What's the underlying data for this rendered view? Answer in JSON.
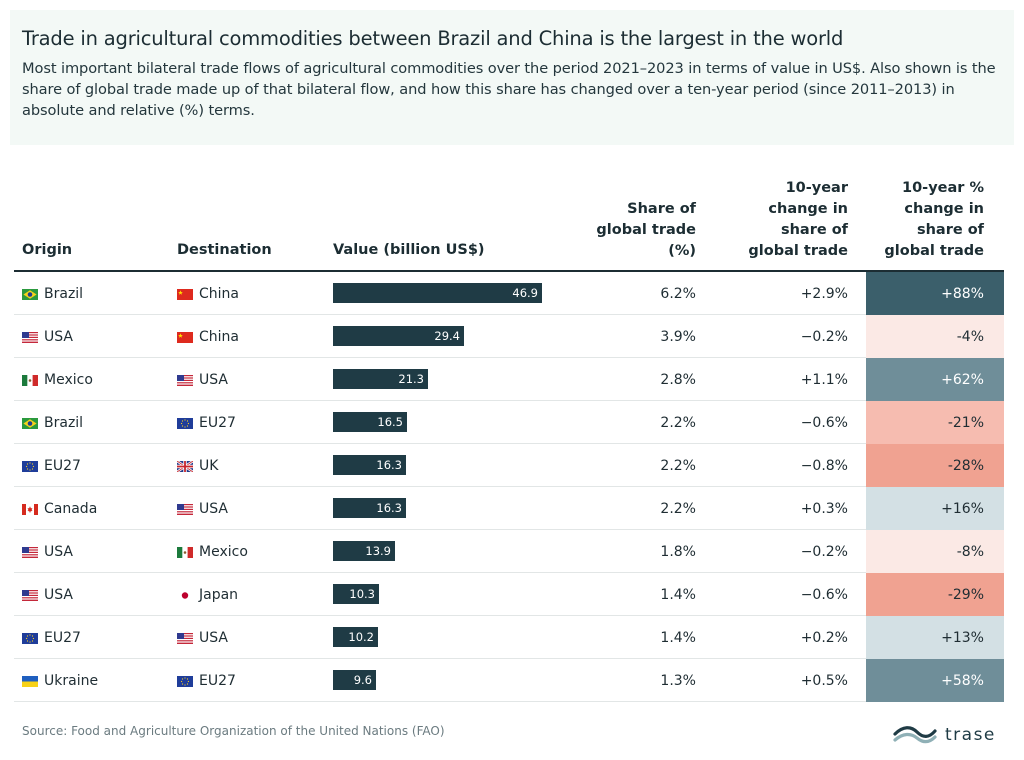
{
  "title": "Trade in agricultural commodities between Brazil and China is the largest in the world",
  "subtitle": "Most important bilateral trade flows of agricultural commodities over the period 2021–2023 in terms of value in US$. Also shown is the share of global trade made up of that bilateral flow, and how this share has changed over a ten-year period (since 2011–2013) in absolute and relative (%) terms.",
  "columns": {
    "origin": "Origin",
    "destination": "Destination",
    "value": "Value (billion US$)",
    "share": "Share of global trade (%)",
    "change_abs": "10-year change in share of global trade",
    "change_rel": "10-year % change in share of global trade"
  },
  "source": "Source: Food and Agriculture Organization of the United Nations (FAO)",
  "logo_text": "trase",
  "colors": {
    "bar": "#1f3b45",
    "positive_strong": "#3b5f6b",
    "positive_mid": "#6f8e99",
    "positive_light": "#d3e0e4",
    "negative_light": "#fbe9e5",
    "negative_mid": "#f6bcb0",
    "negative_strong": "#f0a291"
  },
  "chart_data": {
    "type": "table",
    "value_axis_max": 46.9,
    "rows": [
      {
        "origin": "Brazil",
        "origin_flag": "brazil",
        "destination": "China",
        "destination_flag": "china",
        "value": 46.9,
        "value_label": "46.9",
        "share": "6.2%",
        "change_abs": "+2.9%",
        "change_rel": "+88%",
        "change_rel_value": 88
      },
      {
        "origin": "USA",
        "origin_flag": "usa",
        "destination": "China",
        "destination_flag": "china",
        "value": 29.4,
        "value_label": "29.4",
        "share": "3.9%",
        "change_abs": "−0.2%",
        "change_rel": "-4%",
        "change_rel_value": -4
      },
      {
        "origin": "Mexico",
        "origin_flag": "mexico",
        "destination": "USA",
        "destination_flag": "usa",
        "value": 21.3,
        "value_label": "21.3",
        "share": "2.8%",
        "change_abs": "+1.1%",
        "change_rel": "+62%",
        "change_rel_value": 62
      },
      {
        "origin": "Brazil",
        "origin_flag": "brazil",
        "destination": "EU27",
        "destination_flag": "eu",
        "value": 16.5,
        "value_label": "16.5",
        "share": "2.2%",
        "change_abs": "−0.6%",
        "change_rel": "-21%",
        "change_rel_value": -21
      },
      {
        "origin": "EU27",
        "origin_flag": "eu",
        "destination": "UK",
        "destination_flag": "uk",
        "value": 16.3,
        "value_label": "16.3",
        "share": "2.2%",
        "change_abs": "−0.8%",
        "change_rel": "-28%",
        "change_rel_value": -28
      },
      {
        "origin": "Canada",
        "origin_flag": "canada",
        "destination": "USA",
        "destination_flag": "usa",
        "value": 16.3,
        "value_label": "16.3",
        "share": "2.2%",
        "change_abs": "+0.3%",
        "change_rel": "+16%",
        "change_rel_value": 16
      },
      {
        "origin": "USA",
        "origin_flag": "usa",
        "destination": "Mexico",
        "destination_flag": "mexico",
        "value": 13.9,
        "value_label": "13.9",
        "share": "1.8%",
        "change_abs": "−0.2%",
        "change_rel": "-8%",
        "change_rel_value": -8
      },
      {
        "origin": "USA",
        "origin_flag": "usa",
        "destination": "Japan",
        "destination_flag": "japan",
        "value": 10.3,
        "value_label": "10.3",
        "share": "1.4%",
        "change_abs": "−0.6%",
        "change_rel": "-29%",
        "change_rel_value": -29
      },
      {
        "origin": "EU27",
        "origin_flag": "eu",
        "destination": "USA",
        "destination_flag": "usa",
        "value": 10.2,
        "value_label": "10.2",
        "share": "1.4%",
        "change_abs": "+0.2%",
        "change_rel": "+13%",
        "change_rel_value": 13
      },
      {
        "origin": "Ukraine",
        "origin_flag": "ukraine",
        "destination": "EU27",
        "destination_flag": "eu",
        "value": 9.6,
        "value_label": "9.6",
        "share": "1.3%",
        "change_abs": "+0.5%",
        "change_rel": "+58%",
        "change_rel_value": 58
      }
    ]
  }
}
